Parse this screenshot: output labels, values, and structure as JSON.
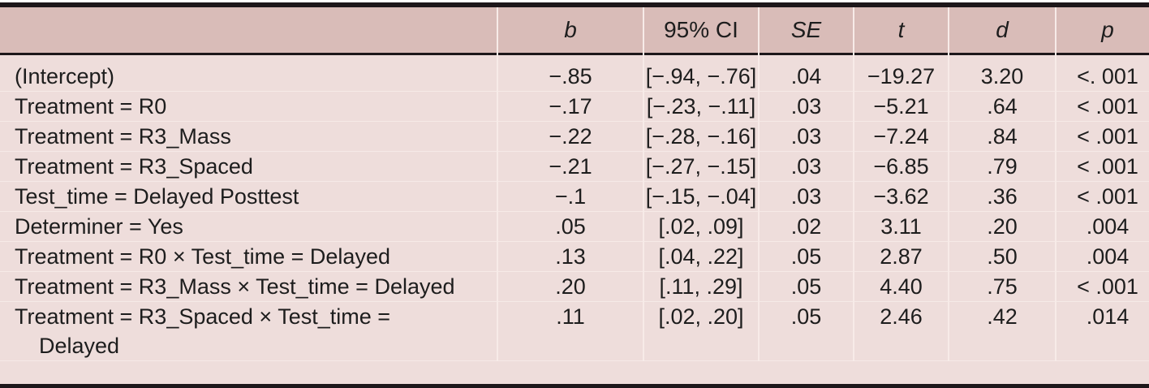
{
  "colors": {
    "header_bg": "#d9bcb8",
    "body_bg": "#eedddb",
    "faint_separator": "#f6eae7",
    "rule_black": "#1d171a",
    "text": "#1d1d1d"
  },
  "table": {
    "columns": [
      {
        "label": ""
      },
      {
        "label": "b"
      },
      {
        "label": "95% CI"
      },
      {
        "label": "SE"
      },
      {
        "label": "t"
      },
      {
        "label": "d"
      },
      {
        "label": "p"
      }
    ],
    "rows": [
      {
        "label": "(Intercept)",
        "b": "−.85",
        "ci": "[−.94, −.76]",
        "se": ".04",
        "t": "−19.27",
        "d": "3.20",
        "p": "<. 001"
      },
      {
        "label": "Treatment = R0",
        "b": "−.17",
        "ci": "[−.23, −.11]",
        "se": ".03",
        "t": "−5.21",
        "d": ".64",
        "p": "< .001"
      },
      {
        "label": "Treatment = R3_Mass",
        "b": "−.22",
        "ci": "[−.28, −.16]",
        "se": ".03",
        "t": "−7.24",
        "d": ".84",
        "p": "< .001"
      },
      {
        "label": "Treatment = R3_Spaced",
        "b": "−.21",
        "ci": "[−.27, −.15]",
        "se": ".03",
        "t": "−6.85",
        "d": ".79",
        "p": "< .001"
      },
      {
        "label": "Test_time = Delayed Posttest",
        "b": "−.1",
        "ci": "[−.15, −.04]",
        "se": ".03",
        "t": "−3.62",
        "d": ".36",
        "p": "< .001"
      },
      {
        "label": "Determiner = Yes",
        "b": ".05",
        "ci": "[.02, .09]",
        "se": ".02",
        "t": "3.11",
        "d": ".20",
        "p": ".004"
      },
      {
        "label": "Treatment = R0 × Test_time = Delayed",
        "b": ".13",
        "ci": "[.04, .22]",
        "se": ".05",
        "t": "2.87",
        "d": ".50",
        "p": ".004"
      },
      {
        "label": "Treatment = R3_Mass × Test_time = Delayed",
        "b": ".20",
        "ci": "[.11, .29]",
        "se": ".05",
        "t": "4.40",
        "d": ".75",
        "p": "< .001"
      },
      {
        "label": "Treatment = R3_Spaced × Test_time =\nDelayed",
        "b": ".11",
        "ci": "[.02, .20]",
        "se": ".05",
        "t": "2.46",
        "d": ".42",
        "p": ".014"
      }
    ]
  }
}
